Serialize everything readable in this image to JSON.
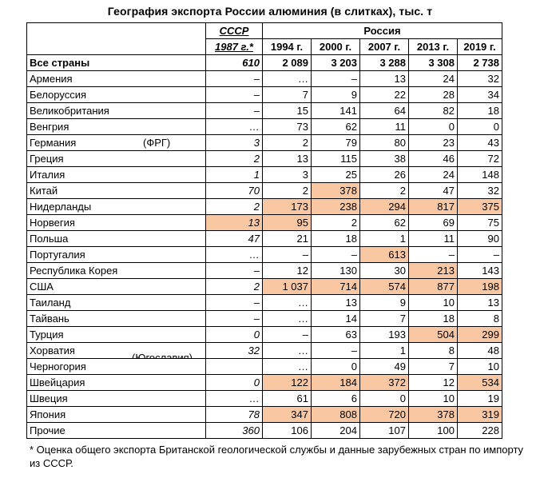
{
  "title": "География экспорта России алюминия (в слитках), тыс. т",
  "header": {
    "ussr_label": "СССР",
    "russia_label": "Россия",
    "ussr_year": "1987 г.*",
    "years": [
      "1994 г.",
      "2000 г.",
      "2007 г.",
      "2013 г.",
      "2019 г."
    ]
  },
  "highlight_color": "#f9c7a1",
  "rows": [
    {
      "country": "Все страны",
      "note": "",
      "ussr": "610",
      "values": [
        "2 089",
        "3 203",
        "3 288",
        "3 308",
        "2 738"
      ]
    },
    {
      "country": "Армения",
      "note": "",
      "ussr": "–",
      "values": [
        "…",
        "–",
        "13",
        "24",
        "32"
      ]
    },
    {
      "country": "Белоруссия",
      "note": "",
      "ussr": "–",
      "values": [
        "7",
        "9",
        "22",
        "28",
        "34"
      ]
    },
    {
      "country": "Великобритания",
      "note": "",
      "ussr": "–",
      "values": [
        "15",
        "141",
        "64",
        "82",
        "18"
      ]
    },
    {
      "country": "Венгрия",
      "note": "",
      "ussr": "…",
      "values": [
        "73",
        "62",
        "11",
        "0",
        "0"
      ]
    },
    {
      "country": "Германия",
      "note": "(ФРГ)",
      "ussr": "3",
      "values": [
        "2",
        "79",
        "80",
        "23",
        "43"
      ]
    },
    {
      "country": "Греция",
      "note": "",
      "ussr": "2",
      "values": [
        "13",
        "115",
        "38",
        "46",
        "72"
      ]
    },
    {
      "country": "Италия",
      "note": "",
      "ussr": "1",
      "values": [
        "3",
        "25",
        "26",
        "24",
        "148"
      ]
    },
    {
      "country": "Китай",
      "note": "",
      "ussr": "70",
      "values": [
        "2",
        "378",
        "2",
        "47",
        "32"
      ]
    },
    {
      "country": "Нидерланды",
      "note": "",
      "ussr": "2",
      "values": [
        "173",
        "238",
        "294",
        "817",
        "375"
      ]
    },
    {
      "country": "Норвегия",
      "note": "",
      "ussr": "13",
      "values": [
        "95",
        "2",
        "62",
        "69",
        "75"
      ]
    },
    {
      "country": "Польша",
      "note": "",
      "ussr": "47",
      "values": [
        "21",
        "18",
        "1",
        "11",
        "90"
      ]
    },
    {
      "country": "Португалия",
      "note": "",
      "ussr": "…",
      "values": [
        "–",
        "–",
        "613",
        "–",
        "–"
      ]
    },
    {
      "country": "Республика Корея",
      "note": "",
      "ussr": "–",
      "values": [
        "12",
        "130",
        "30",
        "213",
        "143"
      ]
    },
    {
      "country": "США",
      "note": "",
      "ussr": "2",
      "values": [
        "1 037",
        "714",
        "574",
        "877",
        "198"
      ]
    },
    {
      "country": "Таиланд",
      "note": "",
      "ussr": "–",
      "values": [
        "…",
        "13",
        "9",
        "10",
        "13"
      ]
    },
    {
      "country": "Тайвань",
      "note": "",
      "ussr": "–",
      "values": [
        "…",
        "14",
        "7",
        "18",
        "8"
      ]
    },
    {
      "country": "Турция",
      "note": "",
      "ussr": "0",
      "values": [
        "–",
        "63",
        "193",
        "504",
        "299"
      ]
    },
    {
      "country": "Хорватия",
      "note": "(Югославия)",
      "ussr": "32",
      "values": [
        "…",
        "–",
        "1",
        "8",
        "48"
      ]
    },
    {
      "country": "Черногория",
      "note": "",
      "ussr": "",
      "values": [
        "…",
        "0",
        "49",
        "7",
        "10"
      ]
    },
    {
      "country": "Швейцария",
      "note": "",
      "ussr": "0",
      "values": [
        "122",
        "184",
        "372",
        "12",
        "534"
      ]
    },
    {
      "country": "Швеция",
      "note": "",
      "ussr": "…",
      "values": [
        "61",
        "6",
        "0",
        "10",
        "19"
      ]
    },
    {
      "country": "Япония",
      "note": "",
      "ussr": "78",
      "values": [
        "347",
        "808",
        "720",
        "378",
        "319"
      ]
    },
    {
      "country": "Прочие",
      "note": "",
      "ussr": "360",
      "values": [
        "106",
        "204",
        "107",
        "100",
        "228"
      ]
    }
  ],
  "highlights": [
    [
      8,
      1
    ],
    [
      9,
      0
    ],
    [
      9,
      1
    ],
    [
      9,
      2
    ],
    [
      9,
      3
    ],
    [
      9,
      4
    ],
    [
      10,
      0
    ],
    [
      10,
      "ussr"
    ],
    [
      12,
      2
    ],
    [
      13,
      3
    ],
    [
      14,
      0
    ],
    [
      14,
      1
    ],
    [
      14,
      2
    ],
    [
      14,
      3
    ],
    [
      14,
      4
    ],
    [
      17,
      3
    ],
    [
      17,
      4
    ],
    [
      20,
      0
    ],
    [
      20,
      1
    ],
    [
      20,
      2
    ],
    [
      20,
      4
    ],
    [
      22,
      0
    ],
    [
      22,
      1
    ],
    [
      22,
      2
    ],
    [
      22,
      3
    ],
    [
      22,
      4
    ]
  ],
  "footnote": "* Оценка общего экспорта Британской геологической службы и данные зарубежных стран по импорту из СССР."
}
